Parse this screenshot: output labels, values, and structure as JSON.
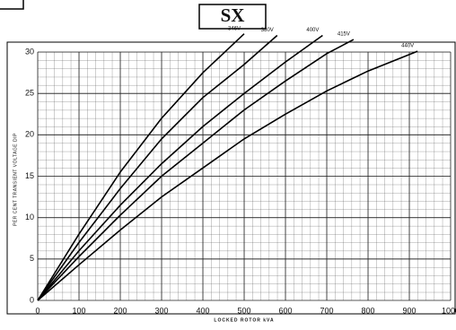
{
  "chart_data": {
    "type": "line",
    "title": "SX",
    "xlabel": "LOCKED ROTOR kVA",
    "ylabel": "PER CENT TRANSIENT VOLTAGE DIP",
    "xlim": [
      0,
      1000
    ],
    "ylim": [
      0,
      30
    ],
    "xticks": [
      0,
      100,
      200,
      300,
      400,
      500,
      600,
      700,
      800,
      900,
      1000
    ],
    "yticks": [
      0,
      5,
      10,
      15,
      20,
      25,
      30
    ],
    "grid": true,
    "series": [
      {
        "name": "346V",
        "color": "#000000",
        "x": [
          0,
          100,
          200,
          300,
          400,
          500
        ],
        "values": [
          0,
          8,
          15.5,
          22,
          27.5,
          32.2
        ]
      },
      {
        "name": "380V",
        "color": "#000000",
        "x": [
          0,
          100,
          200,
          300,
          400,
          500,
          580
        ],
        "values": [
          0,
          7,
          13.5,
          19.5,
          24.5,
          28.5,
          32
        ]
      },
      {
        "name": "400V",
        "color": "#000000",
        "x": [
          0,
          100,
          200,
          300,
          400,
          500,
          600,
          690
        ],
        "values": [
          0,
          6,
          11.5,
          16.5,
          21,
          25,
          28.8,
          32
        ]
      },
      {
        "name": "415V",
        "color": "#000000",
        "x": [
          0,
          100,
          200,
          300,
          400,
          500,
          600,
          700,
          765
        ],
        "values": [
          0,
          5.3,
          10.3,
          15,
          19,
          23,
          26.5,
          29.8,
          31.5
        ]
      },
      {
        "name": "440V",
        "color": "#000000",
        "x": [
          0,
          100,
          200,
          300,
          400,
          500,
          600,
          700,
          800,
          920
        ],
        "values": [
          0,
          4.3,
          8.5,
          12.5,
          16,
          19.5,
          22.5,
          25.3,
          27.7,
          30.1
        ]
      }
    ]
  }
}
